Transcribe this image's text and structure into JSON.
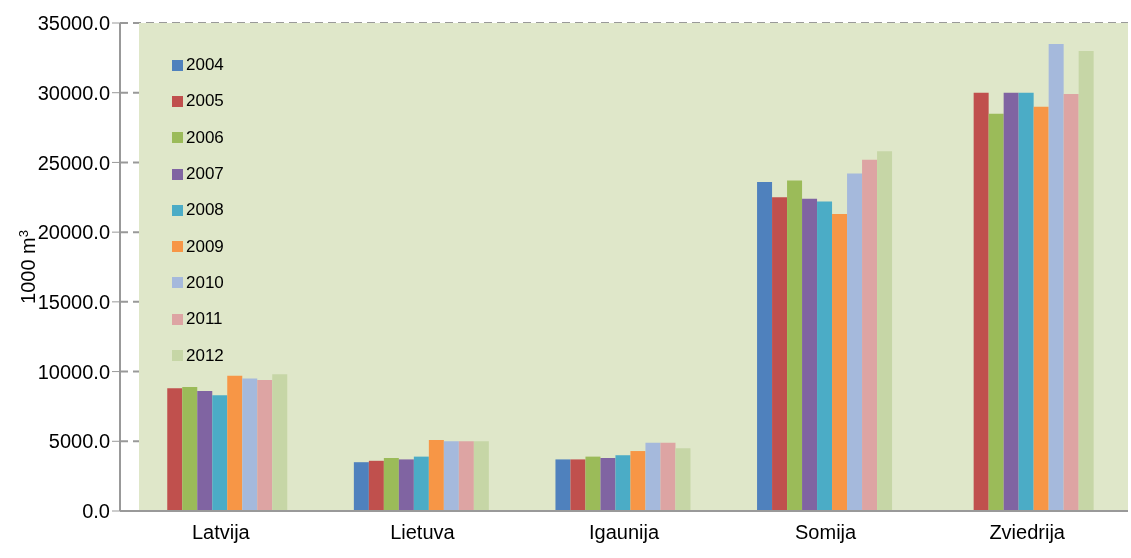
{
  "chart_data": {
    "type": "bar",
    "ylabel": "1000 m$^{3}$",
    "categories": [
      "Latvija",
      "Lietuva",
      "Igaunija",
      "Somija",
      "Zviedrija"
    ],
    "series": [
      {
        "name": "2004",
        "color": "#4f81bd",
        "values": [
          null,
          3500,
          3700,
          23600,
          null
        ]
      },
      {
        "name": "2005",
        "color": "#c0504d",
        "values": [
          8800,
          3600,
          3700,
          22500,
          30000
        ]
      },
      {
        "name": "2006",
        "color": "#9bbb59",
        "values": [
          8900,
          3800,
          3900,
          23700,
          28500
        ]
      },
      {
        "name": "2007",
        "color": "#8064a2",
        "values": [
          8600,
          3700,
          3800,
          22400,
          30000
        ]
      },
      {
        "name": "2008",
        "color": "#4bacc6",
        "values": [
          8300,
          3900,
          4000,
          22200,
          30000
        ]
      },
      {
        "name": "2009",
        "color": "#f79646",
        "values": [
          9700,
          5100,
          4300,
          21300,
          29000
        ]
      },
      {
        "name": "2010",
        "color": "#a5b9dc",
        "values": [
          9500,
          5000,
          4900,
          24200,
          33500
        ]
      },
      {
        "name": "2011",
        "color": "#dda4a3",
        "values": [
          9400,
          5000,
          4900,
          25200,
          29900
        ]
      },
      {
        "name": "2012",
        "color": "#c6d6a6",
        "values": [
          9800,
          5000,
          4500,
          25800,
          33000
        ]
      }
    ],
    "ylim": [
      0,
      35000
    ],
    "yticks": [
      {
        "value": 0,
        "label": "0.0"
      },
      {
        "value": 5000,
        "label": "5000.0"
      },
      {
        "value": 10000,
        "label": "10000.0"
      },
      {
        "value": 15000,
        "label": "15000.0"
      },
      {
        "value": 20000,
        "label": "20000.0"
      },
      {
        "value": 25000,
        "label": "25000.0"
      },
      {
        "value": 30000,
        "label": "30000.0"
      },
      {
        "value": 35000,
        "label": "35000.0"
      }
    ],
    "grid": "y",
    "legend": "top left"
  }
}
